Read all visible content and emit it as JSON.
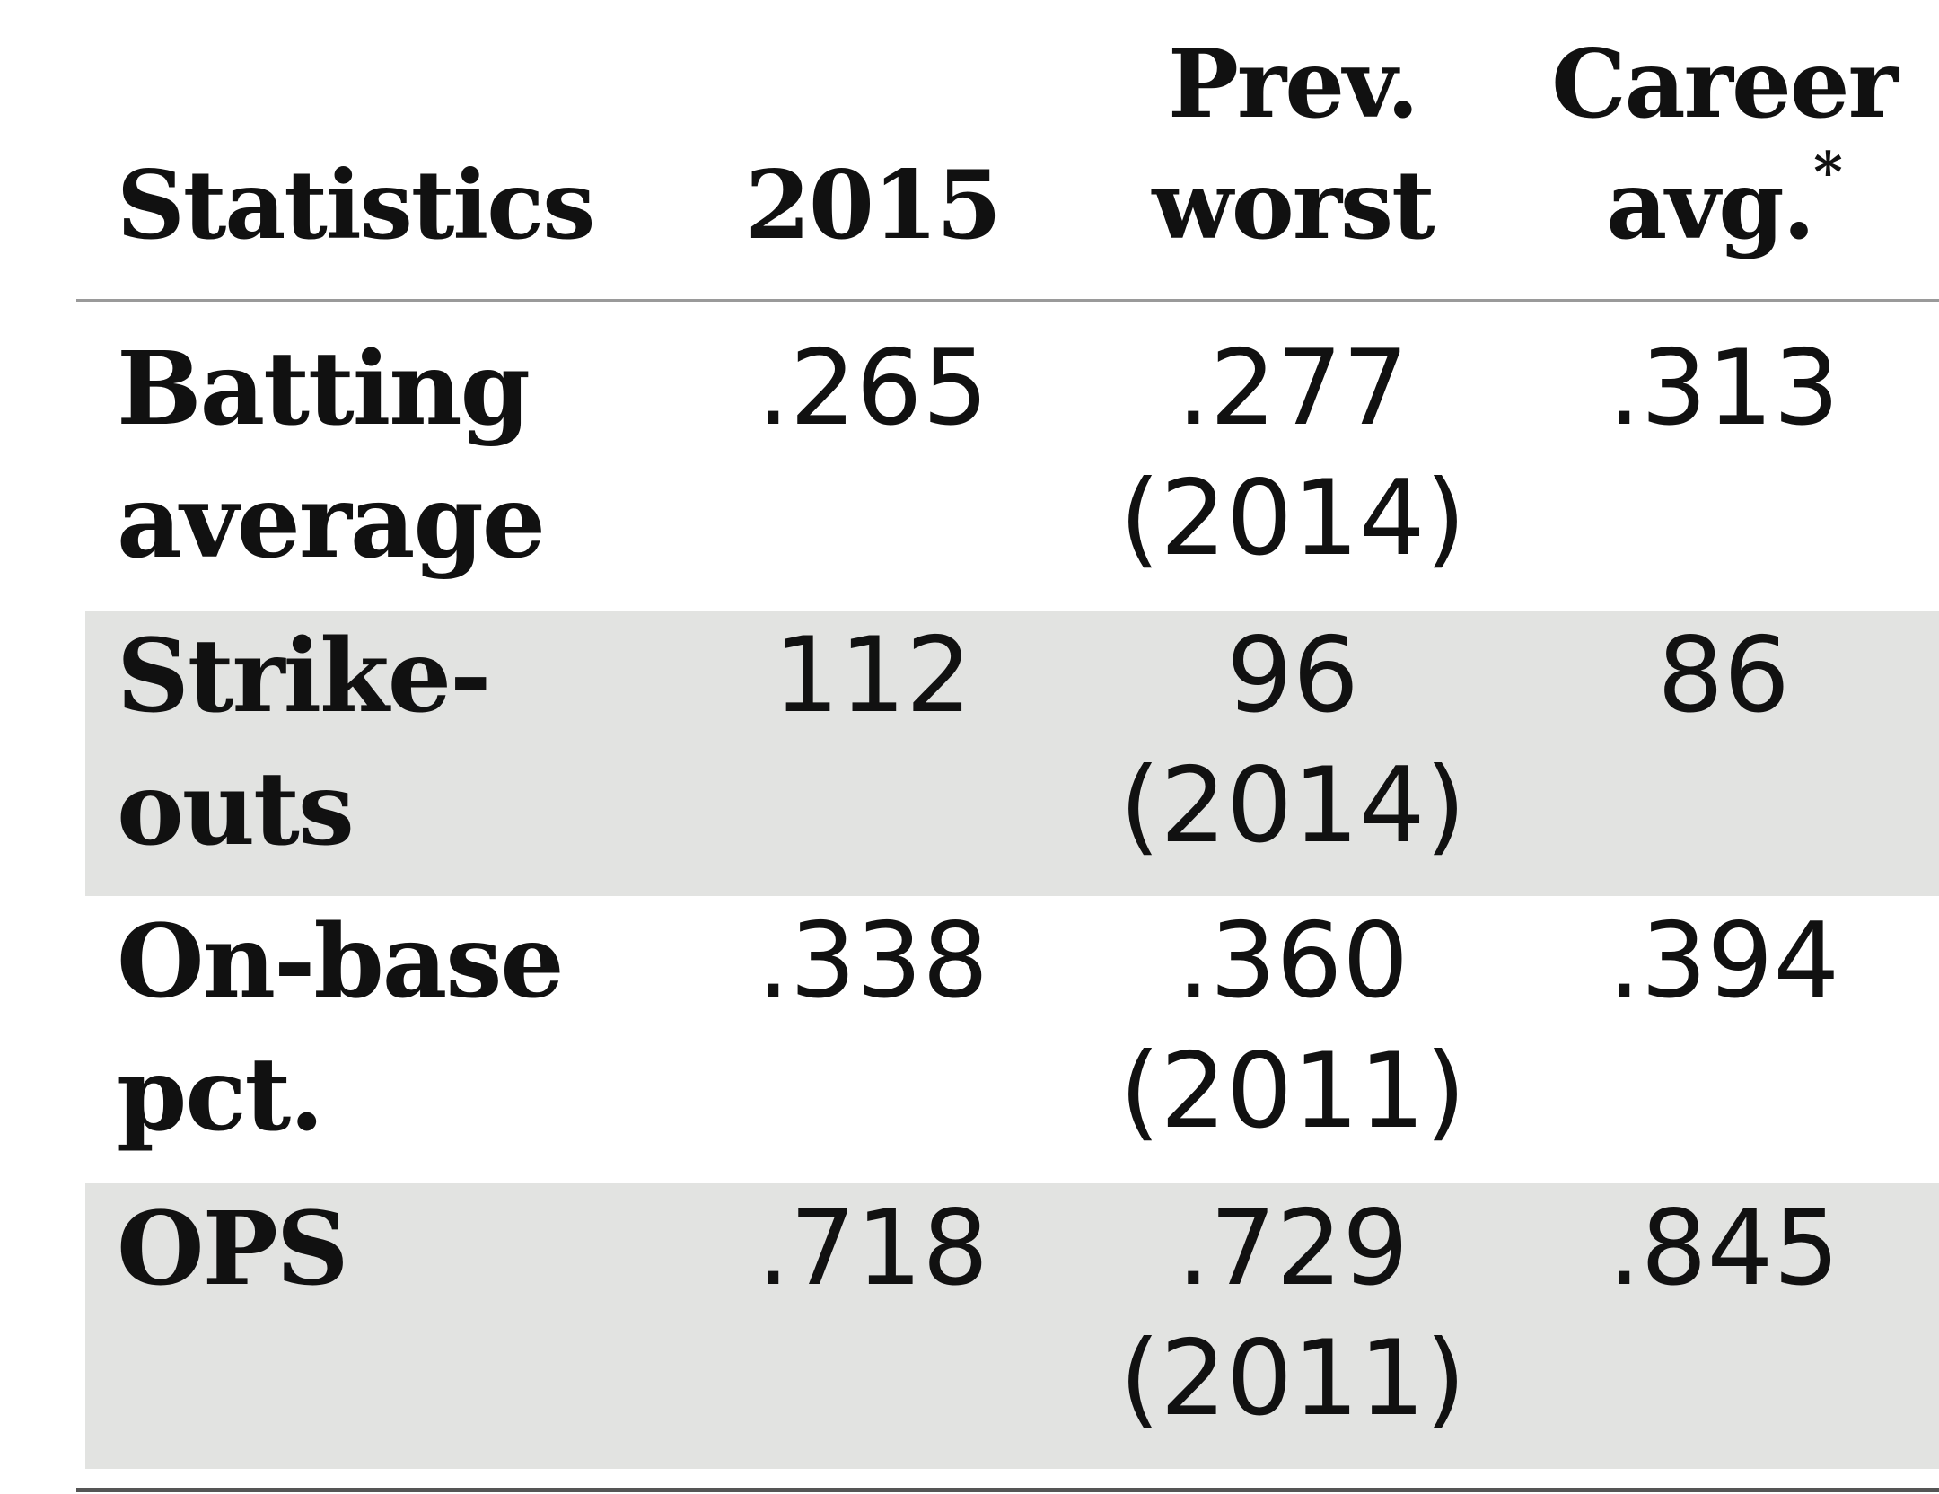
{
  "chart_data": {
    "type": "table",
    "columns": [
      "Statistics",
      "2015",
      "Prev. worst",
      "Career avg.*"
    ],
    "header": {
      "statistics": "Statistics",
      "year": "2015",
      "prev_line1": "Prev.",
      "prev_line2": "worst",
      "career_line1": "Career",
      "career_line2": "avg.",
      "career_mark": "*"
    },
    "rows": [
      {
        "label_line1": "Batting",
        "label_line2": "average",
        "v2015": ".265",
        "prev": ".277",
        "prev_year": "(2014)",
        "career": ".313",
        "shaded": false
      },
      {
        "label_line1": "Strike-",
        "label_line2": "outs",
        "v2015": "112",
        "prev": "96",
        "prev_year": "(2014)",
        "career": "86",
        "shaded": true
      },
      {
        "label_line1": "On-base",
        "label_line2": "pct.",
        "v2015": ".338",
        "prev": ".360",
        "prev_year": "(2011)",
        "career": ".394",
        "shaded": false
      },
      {
        "label_line1": "OPS",
        "label_line2": "",
        "v2015": ".718",
        "prev": ".729",
        "prev_year": "(2011)",
        "career": ".845",
        "shaded": true
      }
    ],
    "colors": {
      "shaded_row": "#e2e3e1",
      "rule": "#9a9a9a",
      "text": "#111111"
    }
  }
}
